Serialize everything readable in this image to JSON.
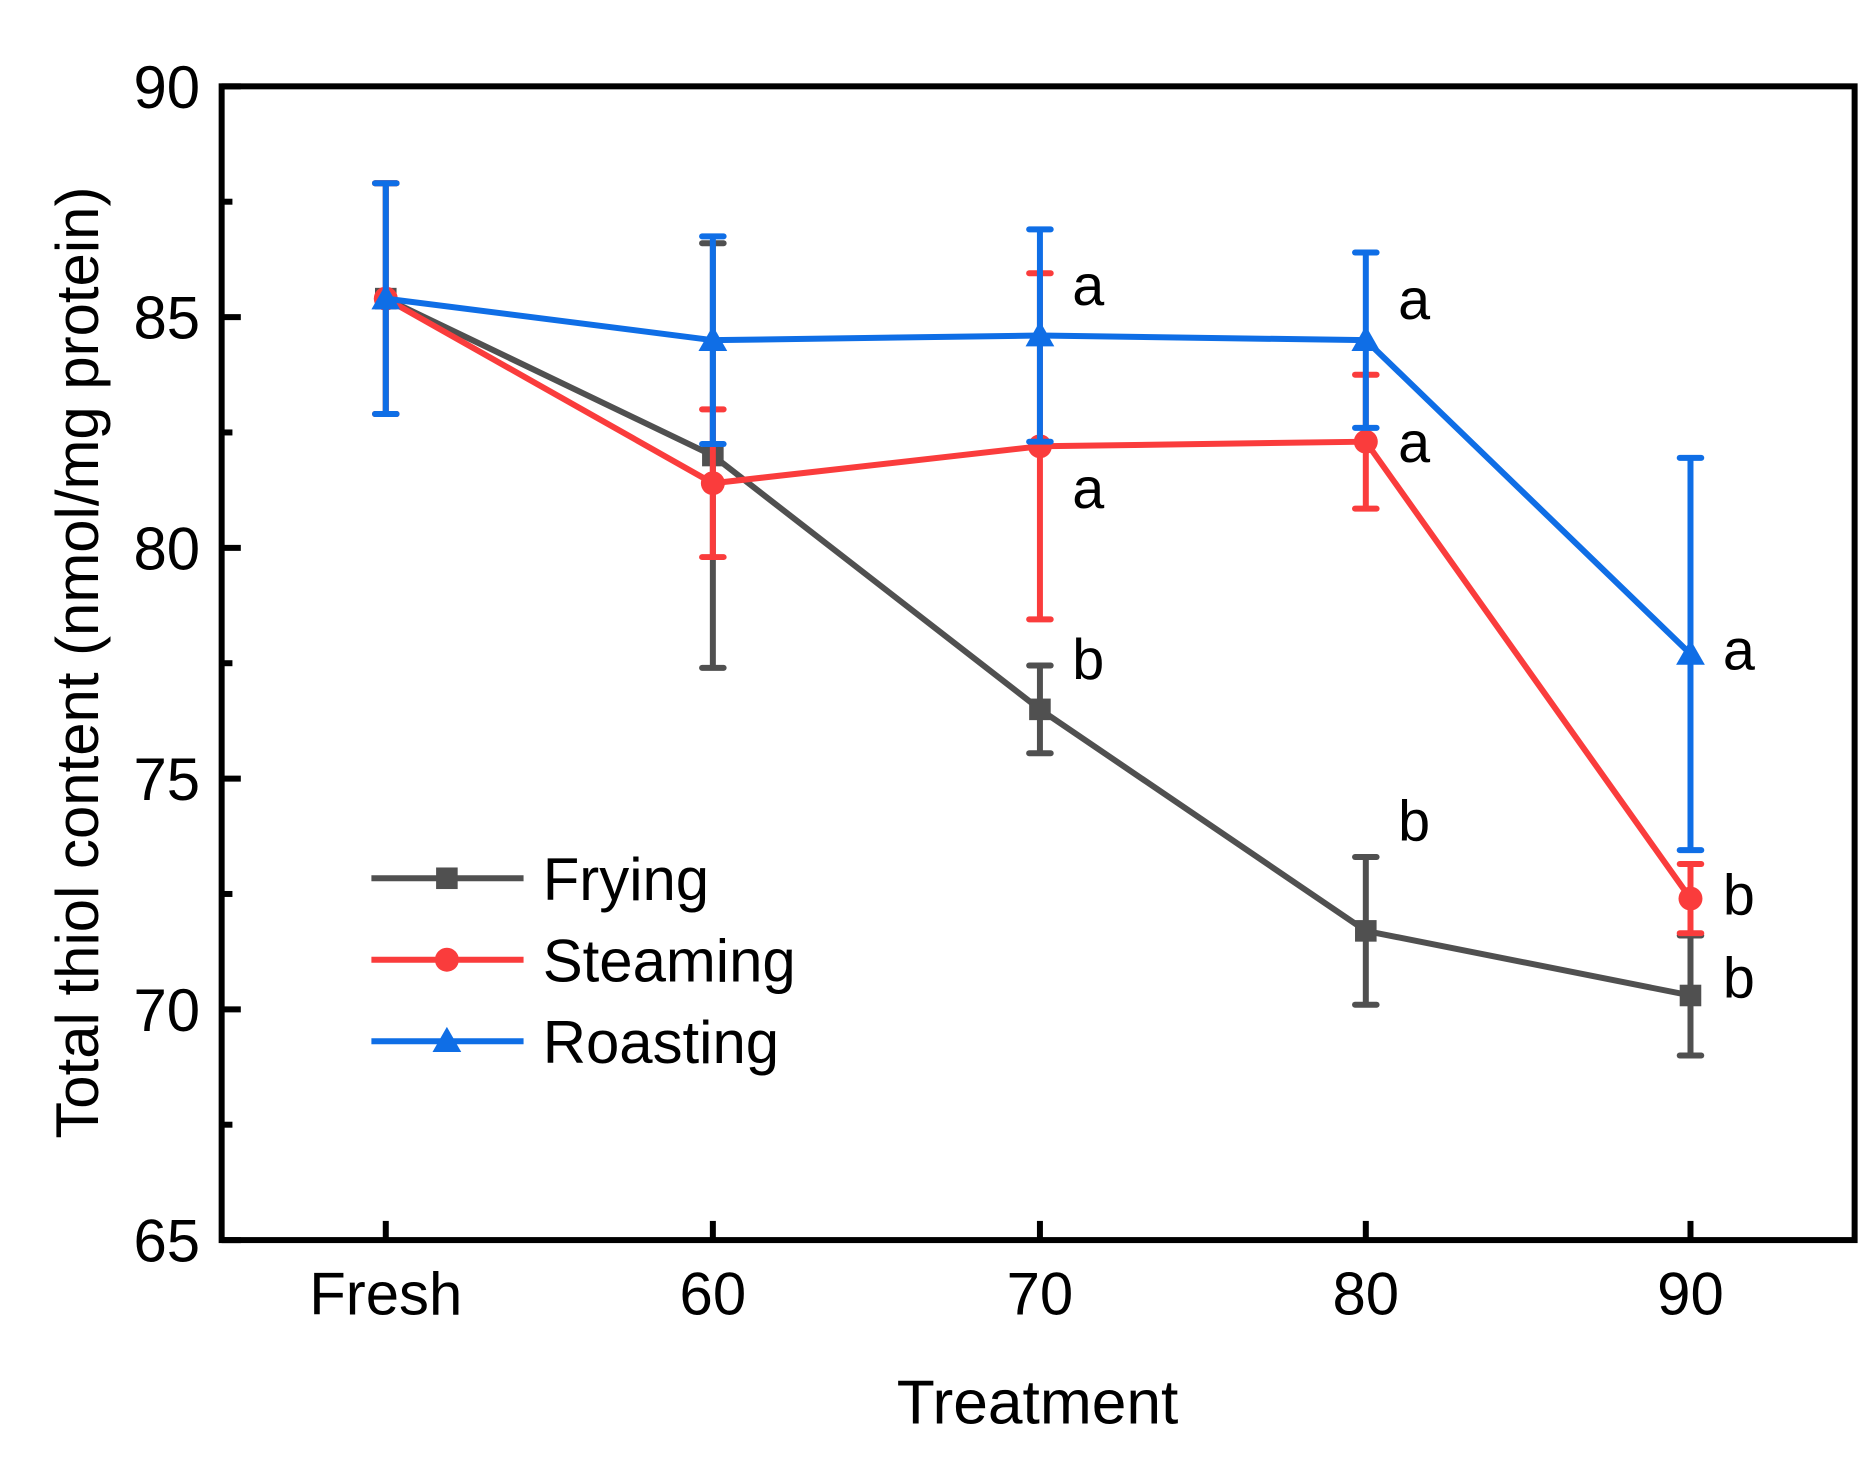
{
  "chart_data": {
    "type": "line",
    "title": "",
    "xlabel": "Treatment",
    "ylabel": "Total thiol content (nmol/mg protein)",
    "categories": [
      "Fresh",
      "60",
      "70",
      "80",
      "90"
    ],
    "ylim": [
      65,
      90
    ],
    "yticks": [
      65,
      70,
      75,
      80,
      85,
      90
    ],
    "grid": false,
    "legend_position": "bottom-left",
    "series": [
      {
        "name": "Frying",
        "color": "#505050",
        "marker": "square",
        "values": [
          85.4,
          82.0,
          76.5,
          71.7,
          70.3
        ],
        "errors": [
          2.5,
          4.6,
          0.95,
          1.6,
          1.3
        ]
      },
      {
        "name": "Steaming",
        "color": "#fa3c3c",
        "marker": "circle",
        "values": [
          85.4,
          81.4,
          82.2,
          82.3,
          72.4
        ],
        "errors": [
          2.5,
          1.6,
          3.75,
          1.45,
          0.75
        ]
      },
      {
        "name": "Roasting",
        "color": "#0f6ee6",
        "marker": "triangle",
        "values": [
          85.4,
          84.5,
          84.6,
          84.5,
          77.7
        ],
        "errors": [
          2.5,
          2.25,
          2.3,
          1.9,
          4.25
        ]
      }
    ],
    "annotations": [
      {
        "category": "70",
        "y": 85.7,
        "text": "a"
      },
      {
        "category": "70",
        "y": 81.3,
        "text": "a"
      },
      {
        "category": "70",
        "y": 77.6,
        "text": "b"
      },
      {
        "category": "80",
        "y": 85.4,
        "text": "a"
      },
      {
        "category": "80",
        "y": 82.3,
        "text": "a"
      },
      {
        "category": "80",
        "y": 74.1,
        "text": "b"
      },
      {
        "category": "90",
        "y": 77.8,
        "text": "a"
      },
      {
        "category": "90",
        "y": 72.5,
        "text": "b"
      },
      {
        "category": "90",
        "y": 70.7,
        "text": "b"
      }
    ]
  }
}
